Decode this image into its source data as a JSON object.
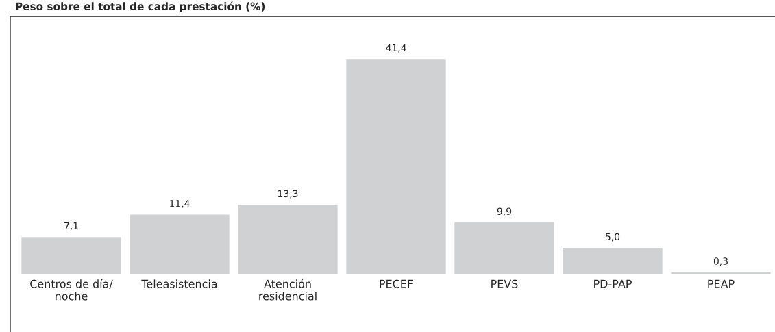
{
  "chart_data": {
    "type": "bar",
    "title": "Peso sobre el total de cada prestación (%)",
    "categories": [
      "Centros de día/\nnoche",
      "Teleasistencia",
      "Atención\nresidencial",
      "PECEF",
      "PEVS",
      "PD-PAP",
      "PEAP"
    ],
    "values": [
      7.1,
      11.4,
      13.3,
      41.4,
      9.9,
      5.0,
      0.3
    ],
    "value_labels": [
      "7,1",
      "11,4",
      "13,3",
      "41,4",
      "9,9",
      "5,0",
      "0,3"
    ],
    "color": "#d0d1d3"
  }
}
